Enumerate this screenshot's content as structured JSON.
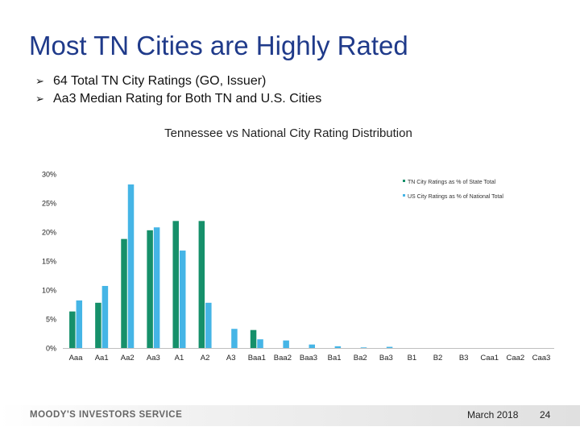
{
  "slide": {
    "title": "Most TN Cities are Highly Rated",
    "bullets": [
      "64 Total TN City Ratings (GO, Issuer)",
      "Aa3 Median Rating for Both TN and U.S. Cities"
    ],
    "bullet_glyph": "➢"
  },
  "chart_data": {
    "type": "bar",
    "title": "Tennessee vs National City Rating Distribution",
    "xlabel": "",
    "ylabel": "",
    "categories": [
      "Aaa",
      "Aa1",
      "Aa2",
      "Aa3",
      "A1",
      "A2",
      "A3",
      "Baa1",
      "Baa2",
      "Baa3",
      "Ba1",
      "Ba2",
      "Ba3",
      "B1",
      "B2",
      "B3",
      "Caa1",
      "Caa2",
      "Caa3"
    ],
    "series": [
      {
        "name": "TN City Ratings as % of State Total",
        "color": "#16906a",
        "values": [
          6.3,
          7.8,
          18.8,
          20.3,
          21.9,
          21.9,
          0,
          3.1,
          0,
          0,
          0,
          0,
          0,
          0,
          0,
          0,
          0,
          0,
          0
        ]
      },
      {
        "name": "US City Ratings as % of National Total",
        "color": "#45b5e6",
        "values": [
          8.2,
          10.7,
          28.2,
          20.8,
          16.8,
          7.8,
          3.3,
          1.5,
          1.3,
          0.6,
          0.3,
          0.1,
          0.2,
          0,
          0,
          0,
          0,
          0,
          0
        ]
      }
    ],
    "ylim": [
      0,
      30
    ],
    "yticks": [
      "0%",
      "5%",
      "10%",
      "15%",
      "20%",
      "25%",
      "30%"
    ],
    "grid": false,
    "legend_position": "top-right"
  },
  "footer": {
    "brand": "MOODY'S INVESTORS SERVICE",
    "date": "March 2018",
    "page_number": "24"
  }
}
